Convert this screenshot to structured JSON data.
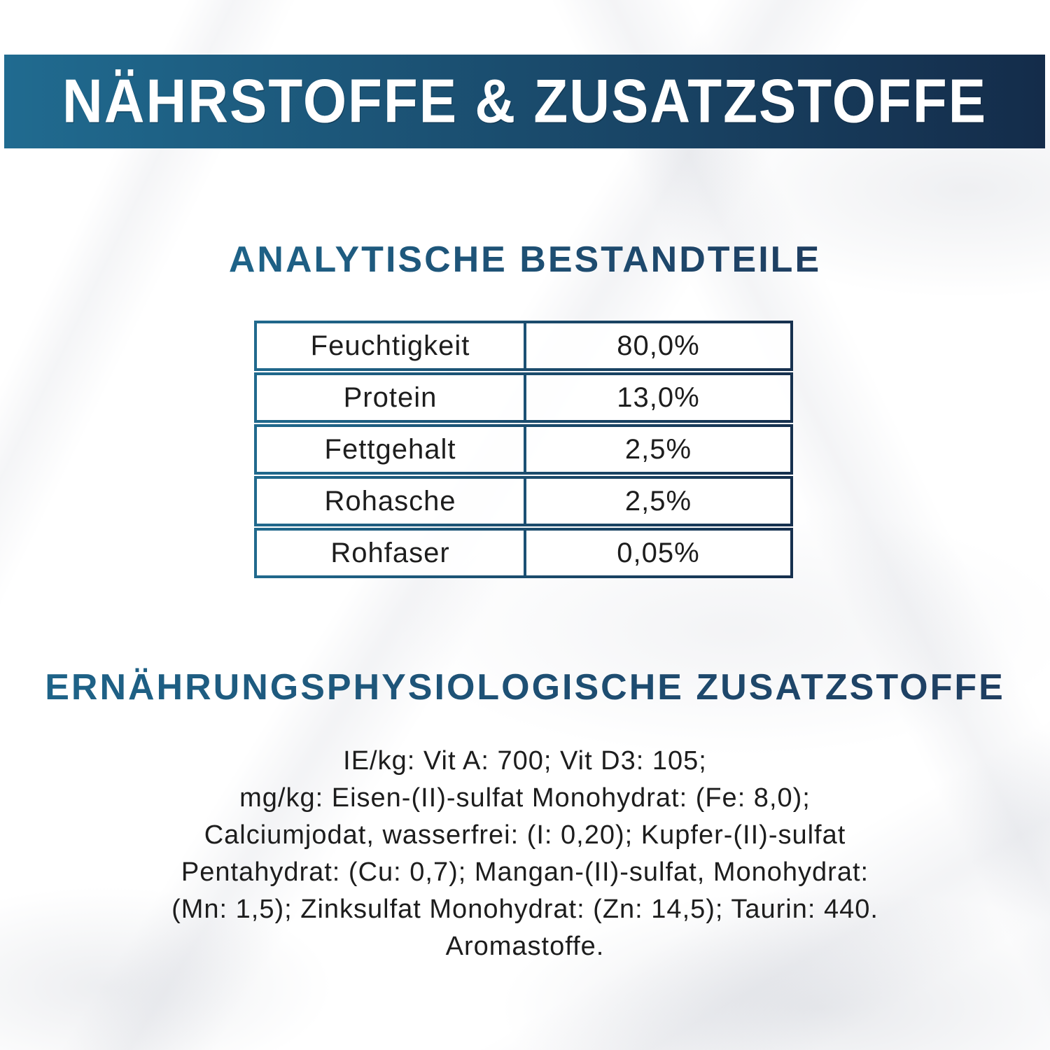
{
  "banner": {
    "title": "NÄHRSTOFFE & ZUSATZSTOFFE"
  },
  "sections": {
    "analytical": {
      "heading": "ANALYTISCHE BESTANDTEILE",
      "table": {
        "rows": [
          {
            "label": "Feuchtigkeit",
            "value": "80,0%"
          },
          {
            "label": "Protein",
            "value": "13,0%"
          },
          {
            "label": "Fettgehalt",
            "value": "2,5%"
          },
          {
            "label": "Rohasche",
            "value": "2,5%"
          },
          {
            "label": "Rohfaser",
            "value": "0,05%"
          }
        ]
      }
    },
    "additives": {
      "heading": "ERNÄHRUNGSPHYSIOLOGISCHE ZUSATZSTOFFE",
      "lines": [
        "IE/kg: Vit A: 700; Vit D3: 105;",
        "mg/kg: Eisen-(II)-sulfat Monohydrat: (Fe: 8,0);",
        "Calciumjodat, wasserfrei: (I: 0,20); Kupfer-(II)-sulfat",
        "Pentahydrat: (Cu: 0,7); Mangan-(II)-sulfat, Monohydrat:",
        "(Mn: 1,5); Zinksulfat Monohydrat: (Zn: 14,5); Taurin: 440.",
        "Aromastoffe."
      ]
    }
  },
  "colors": {
    "banner_gradient_start": "#206b90",
    "banner_gradient_end": "#142c4a",
    "heading_gradient_start": "#1e6388",
    "heading_gradient_end": "#1e3d60",
    "table_border_start": "#20698d",
    "table_border_end": "#16304e",
    "table_divider": "#1b5174",
    "body_text": "#1d1d1d",
    "banner_text": "#ffffff"
  }
}
